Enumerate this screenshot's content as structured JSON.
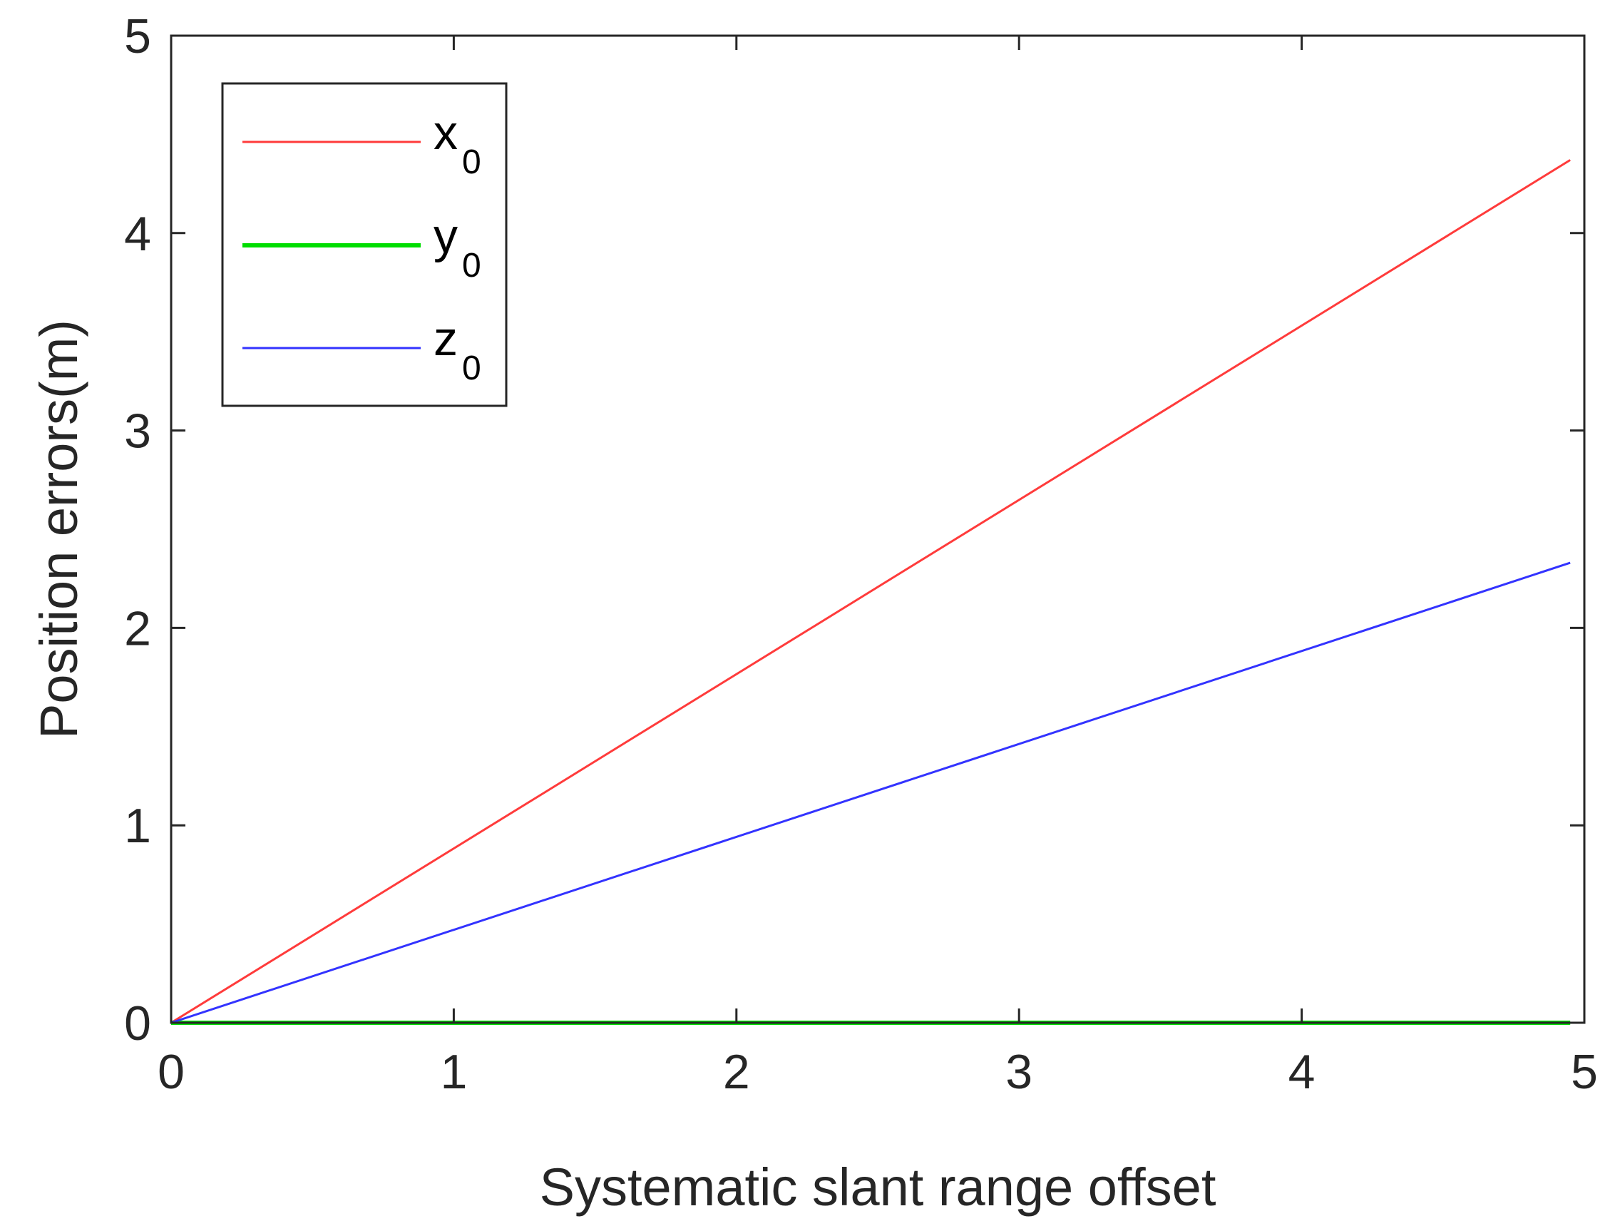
{
  "chart_data": {
    "type": "line",
    "xlabel": "Systematic slant range offset",
    "ylabel": "Position errors(m)",
    "xlim": [
      0,
      5
    ],
    "ylim": [
      0,
      5
    ],
    "xticks": [
      "0",
      "1",
      "2",
      "3",
      "4",
      "5"
    ],
    "yticks": [
      "0",
      "1",
      "2",
      "3",
      "4",
      "5"
    ],
    "grid": false,
    "legend_position": "top-left",
    "series": [
      {
        "name": "x",
        "subscript": "0",
        "color": "#ff3b3b",
        "x": [
          0,
          4.95
        ],
        "y": [
          0,
          4.37
        ]
      },
      {
        "name": "y",
        "subscript": "0",
        "color": "#00dd00",
        "x": [
          0,
          4.95
        ],
        "y": [
          0,
          0
        ]
      },
      {
        "name": "z",
        "subscript": "0",
        "color": "#3333ff",
        "x": [
          0,
          4.95
        ],
        "y": [
          0,
          2.33
        ]
      }
    ]
  }
}
